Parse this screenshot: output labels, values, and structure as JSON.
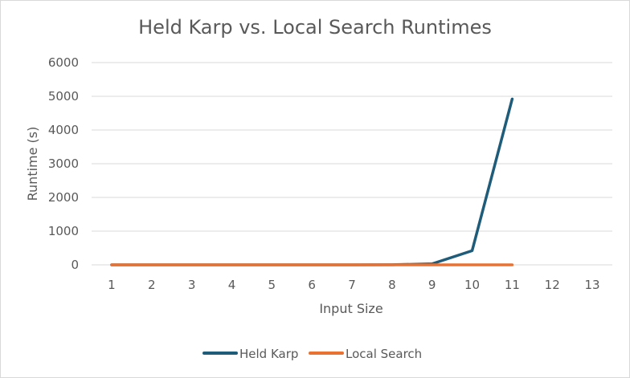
{
  "chart_data": {
    "type": "line",
    "title": "Held Karp vs. Local Search Runtimes",
    "xlabel": "Input Size",
    "ylabel": "Runtime (s)",
    "categories": [
      "1",
      "2",
      "3",
      "4",
      "5",
      "6",
      "7",
      "8",
      "9",
      "10",
      "11",
      "12",
      "13"
    ],
    "ylim": [
      0,
      6000
    ],
    "yticks": [
      "0",
      "1000",
      "2000",
      "3000",
      "4000",
      "5000",
      "6000"
    ],
    "grid": true,
    "legend_position": "bottom",
    "series": [
      {
        "name": "Held Karp",
        "color": "#1f5c7a",
        "values": [
          0,
          0,
          0,
          0,
          0,
          0,
          0,
          2,
          30,
          420,
          4920,
          null,
          null
        ]
      },
      {
        "name": "Local Search",
        "color": "#e97132",
        "values": [
          0,
          0,
          0,
          0,
          0,
          0,
          0,
          0,
          0,
          0,
          0,
          null,
          null
        ]
      }
    ]
  }
}
